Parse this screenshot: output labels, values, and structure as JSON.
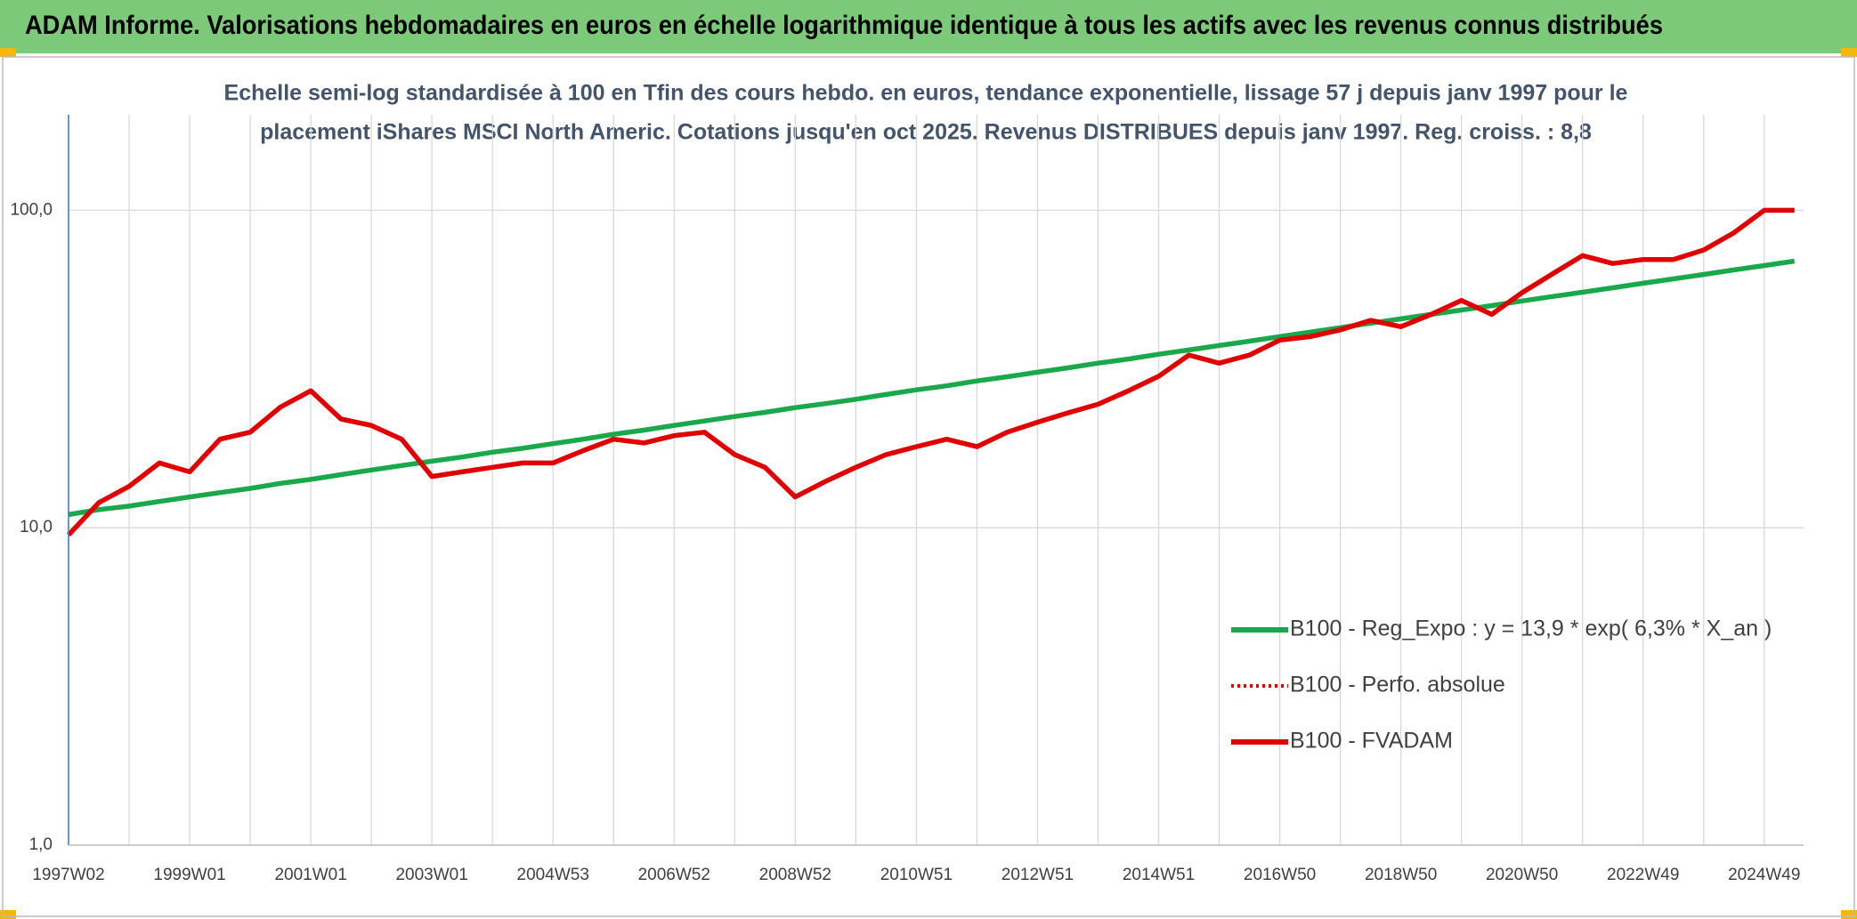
{
  "header": {
    "title": "ADAM Informe. Valorisations hebdomadaires en euros en échelle logarithmique identique à tous les actifs avec les revenus connus distribués"
  },
  "chart_data": {
    "type": "line",
    "title": [
      "Echelle semi-log standardisée à 100 en Tfin des cours hebdo. en euros, tendance exponentielle, lissage 57 j depuis janv 1997 pour le",
      "placement iShares MSCI North Americ. Cotations jusqu'en oct 2025. Revenus DISTRIBUES depuis janv 1997. Reg. croiss. : 8,8"
    ],
    "log_scale": true,
    "grid": true,
    "legend": "right",
    "ylim": [
      1,
      200
    ],
    "yticks": [
      {
        "value": 1,
        "label": "1,0"
      },
      {
        "value": 10,
        "label": "10,0"
      },
      {
        "value": 100,
        "label": "100,0"
      }
    ],
    "categories": [
      "1997W02",
      null,
      null,
      null,
      "1999W01",
      null,
      null,
      null,
      "2001W01",
      null,
      null,
      null,
      "2003W01",
      null,
      null,
      null,
      "2004W53",
      null,
      null,
      null,
      "2006W52",
      null,
      null,
      null,
      "2008W52",
      null,
      null,
      null,
      "2010W51",
      null,
      null,
      null,
      "2012W51",
      null,
      null,
      null,
      "2014W51",
      null,
      null,
      null,
      "2016W50",
      null,
      null,
      null,
      "2018W50",
      null,
      null,
      null,
      "2020W50",
      null,
      null,
      null,
      "2022W49",
      null,
      null,
      null,
      "2024W49",
      null
    ],
    "series": [
      {
        "name": "B100 - Reg_Expo : y = 13,9 * exp( 6,3% *  X_an )",
        "color": "#1aa84a",
        "style": "solid",
        "values": [
          11.0,
          11.4,
          11.7,
          12.1,
          12.5,
          12.9,
          13.3,
          13.8,
          14.2,
          14.7,
          15.2,
          15.7,
          16.2,
          16.7,
          17.3,
          17.8,
          18.4,
          19.0,
          19.7,
          20.3,
          21.0,
          21.7,
          22.4,
          23.1,
          23.9,
          24.6,
          25.4,
          26.3,
          27.2,
          28.0,
          29.0,
          29.9,
          30.9,
          31.9,
          33.0,
          34.0,
          35.2,
          36.3,
          37.5,
          38.7,
          40.0,
          41.3,
          42.7,
          44.1,
          45.5,
          47.0,
          48.5,
          50.1,
          51.8,
          53.5,
          55.2,
          57.0,
          58.9,
          60.8,
          62.8,
          64.9,
          67.0,
          69.2
        ]
      },
      {
        "name": "B100 - Perfo. absolue",
        "color": "#e00000",
        "style": "dotted",
        "values": [
          9.5,
          12,
          13.5,
          16,
          15,
          19,
          20,
          24,
          27,
          22,
          21,
          19,
          14.5,
          15,
          15.5,
          16,
          16,
          17.5,
          19,
          18.5,
          19.5,
          20,
          17,
          15.5,
          12.5,
          14,
          15.5,
          17,
          18,
          19,
          18,
          20,
          21.5,
          23,
          24.5,
          27,
          30,
          35,
          33,
          35,
          39,
          40,
          42,
          45,
          43,
          47,
          52,
          47,
          55,
          63,
          72,
          68,
          70,
          70,
          75,
          85,
          100,
          100
        ]
      },
      {
        "name": "B100 - FVADAM",
        "color": "#e00000",
        "style": "solid",
        "values": [
          9.5,
          12,
          13.5,
          16,
          15,
          19,
          20,
          24,
          27,
          22,
          21,
          19,
          14.5,
          15,
          15.5,
          16,
          16,
          17.5,
          19,
          18.5,
          19.5,
          20,
          17,
          15.5,
          12.5,
          14,
          15.5,
          17,
          18,
          19,
          18,
          20,
          21.5,
          23,
          24.5,
          27,
          30,
          35,
          33,
          35,
          39,
          40,
          42,
          45,
          43,
          47,
          52,
          47,
          55,
          63,
          72,
          68,
          70,
          70,
          75,
          85,
          100,
          100
        ]
      }
    ]
  }
}
